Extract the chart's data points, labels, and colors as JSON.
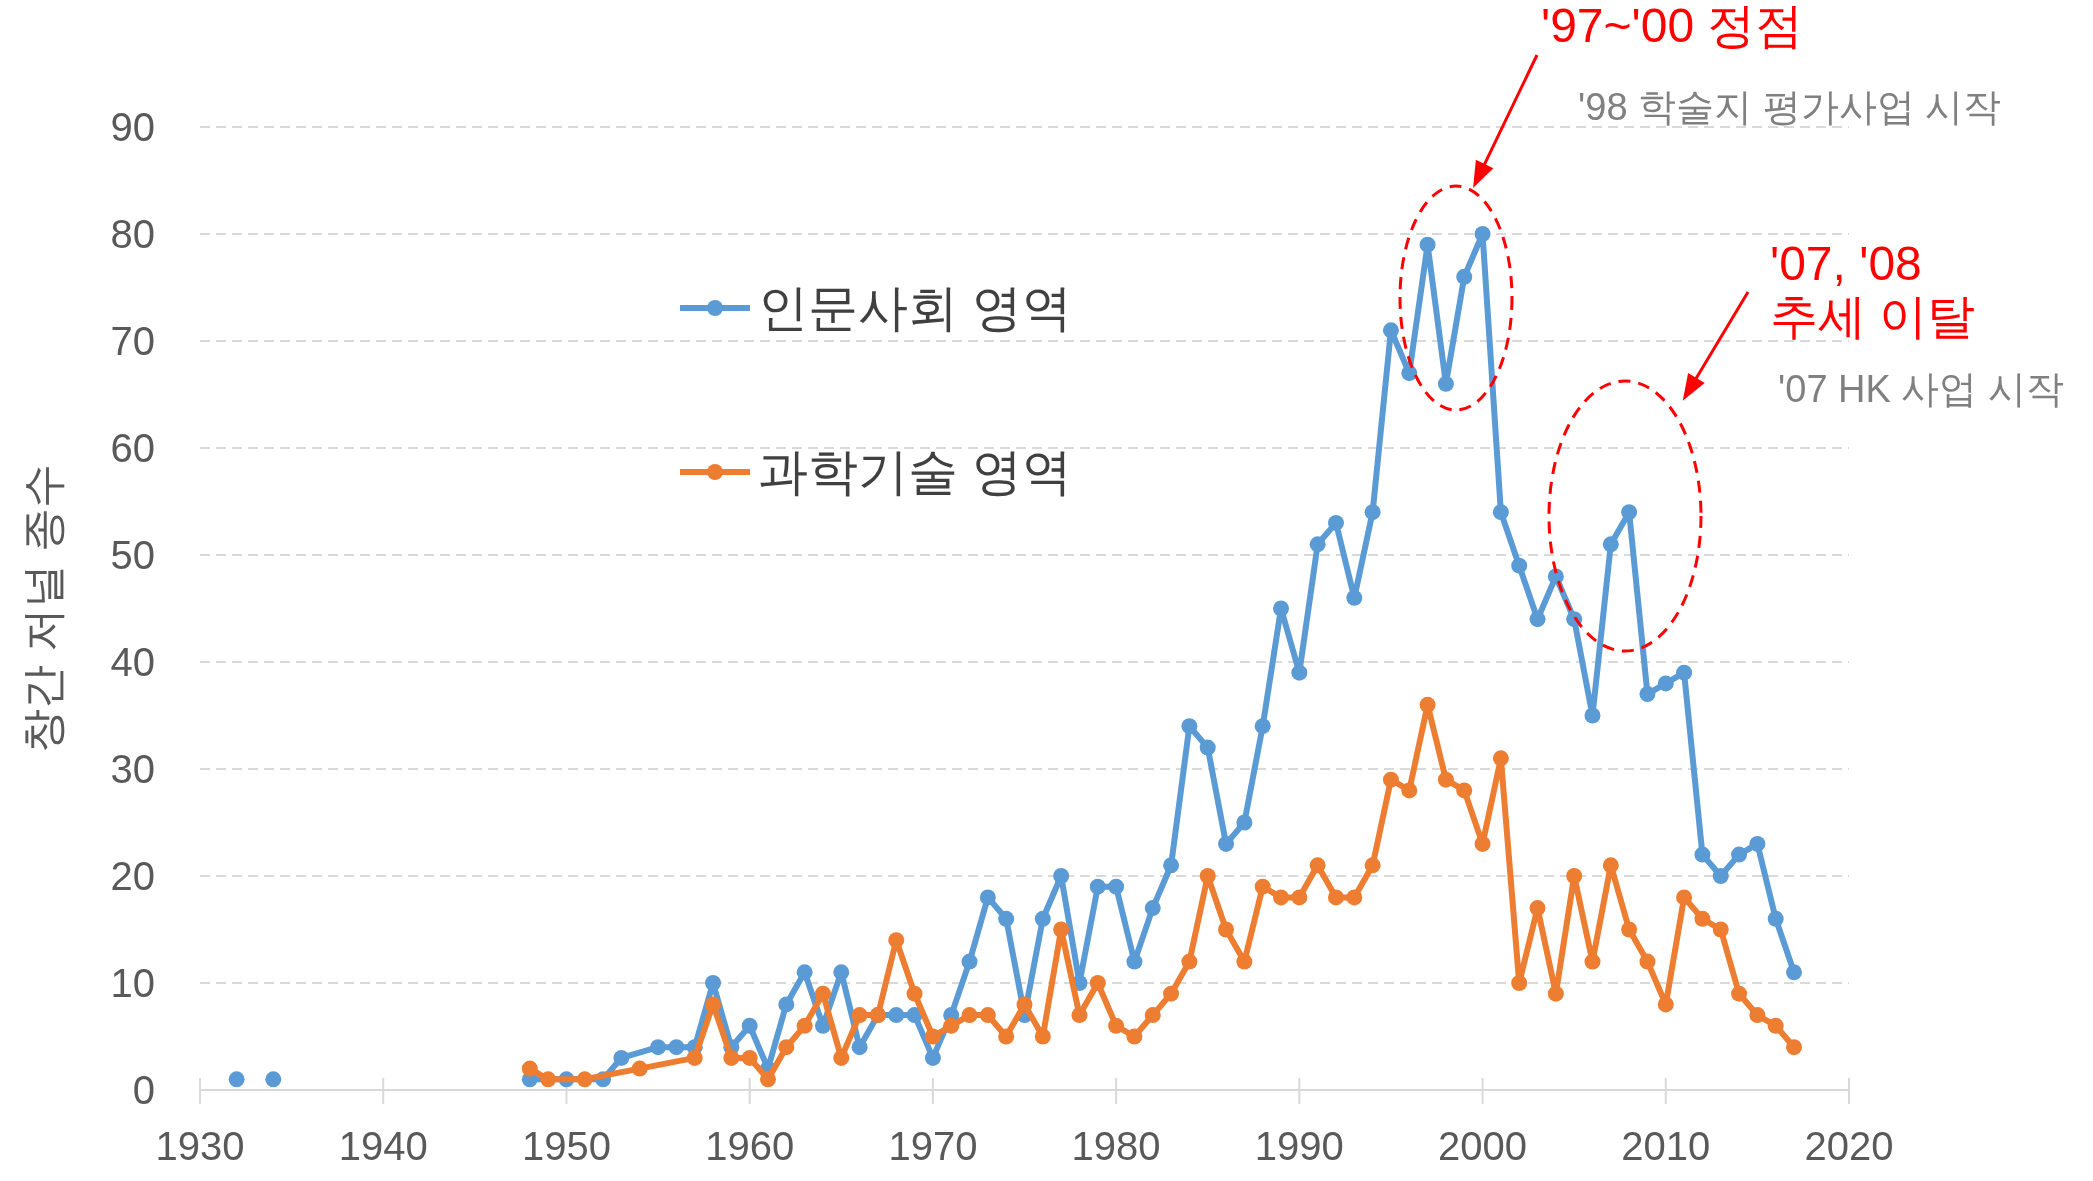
{
  "chart_data": {
    "type": "line",
    "ylabel": "창간 저널 종수",
    "xlim": [
      1930,
      2020
    ],
    "ylim": [
      0,
      90
    ],
    "xticks": [
      1930,
      1940,
      1950,
      1960,
      1970,
      1980,
      1990,
      2000,
      2010,
      2020
    ],
    "yticks": [
      0,
      10,
      20,
      30,
      40,
      50,
      60,
      70,
      80,
      90
    ],
    "grid": "y",
    "legend": "top left",
    "marker": "circle",
    "line_style": "solid",
    "series": [
      {
        "name": "인문사회 영역",
        "color": "#5b9bd5",
        "x": [
          1948,
          1950,
          1952,
          1953,
          1955,
          1956,
          1957,
          1958,
          1959,
          1960,
          1961,
          1962,
          1963,
          1964,
          1965,
          1966,
          1967,
          1968,
          1969,
          1970,
          1971,
          1972,
          1973,
          1974,
          1975,
          1976,
          1977,
          1978,
          1979,
          1980,
          1981,
          1982,
          1983,
          1984,
          1985,
          1986,
          1987,
          1988,
          1989,
          1990,
          1991,
          1992,
          1993,
          1994,
          1995,
          1996,
          1997,
          1998,
          1999,
          2000,
          2001,
          2002,
          2003,
          2004,
          2005,
          2006,
          2007,
          2008,
          2009,
          2010,
          2011,
          2012,
          2013,
          2014,
          2015,
          2016,
          2017
        ],
        "values": [
          1,
          1,
          1,
          3,
          4,
          4,
          4,
          10,
          4,
          6,
          2,
          8,
          11,
          6,
          11,
          4,
          7,
          7,
          7,
          3,
          7,
          12,
          18,
          16,
          7,
          16,
          20,
          10,
          19,
          19,
          12,
          17,
          21,
          34,
          32,
          23,
          25,
          34,
          45,
          39,
          51,
          53,
          46,
          54,
          71,
          67,
          79,
          66,
          76,
          80,
          54,
          49,
          44,
          48,
          44,
          35,
          51,
          54,
          37,
          38,
          39,
          22,
          20,
          22,
          23,
          16,
          11
        ]
      },
      {
        "type": "scatter",
        "color": "#5b9bd5",
        "x": [
          1932,
          1934
        ],
        "values": [
          1,
          1
        ]
      },
      {
        "name": "과학기술 영역",
        "color": "#ed7d31",
        "x": [
          1948,
          1949,
          1951,
          1954,
          1957,
          1958,
          1959,
          1960,
          1961,
          1962,
          1963,
          1964,
          1965,
          1966,
          1967,
          1968,
          1969,
          1970,
          1971,
          1972,
          1973,
          1974,
          1975,
          1976,
          1977,
          1978,
          1979,
          1980,
          1981,
          1982,
          1983,
          1984,
          1985,
          1986,
          1987,
          1988,
          1989,
          1990,
          1991,
          1992,
          1993,
          1994,
          1995,
          1996,
          1997,
          1998,
          1999,
          2000,
          2001,
          2002,
          2003,
          2004,
          2005,
          2006,
          2007,
          2008,
          2009,
          2010,
          2011,
          2012,
          2013,
          2014,
          2015,
          2016,
          2017
        ],
        "values": [
          2,
          1,
          1,
          2,
          3,
          8,
          3,
          3,
          1,
          4,
          6,
          9,
          3,
          7,
          7,
          14,
          9,
          5,
          6,
          7,
          7,
          5,
          8,
          5,
          15,
          7,
          10,
          6,
          5,
          7,
          9,
          12,
          20,
          15,
          12,
          19,
          18,
          18,
          21,
          18,
          18,
          21,
          29,
          28,
          36,
          29,
          28,
          23,
          31,
          10,
          17,
          9,
          20,
          12,
          21,
          15,
          12,
          8,
          18,
          16,
          15,
          9,
          7,
          6,
          4
        ]
      }
    ],
    "annotations": [
      "'97~'00 정점",
      "'98 학술지 평가사업 시작",
      "'07, '08\n추세 이탈",
      "'07 HK 사업 시작"
    ]
  }
}
